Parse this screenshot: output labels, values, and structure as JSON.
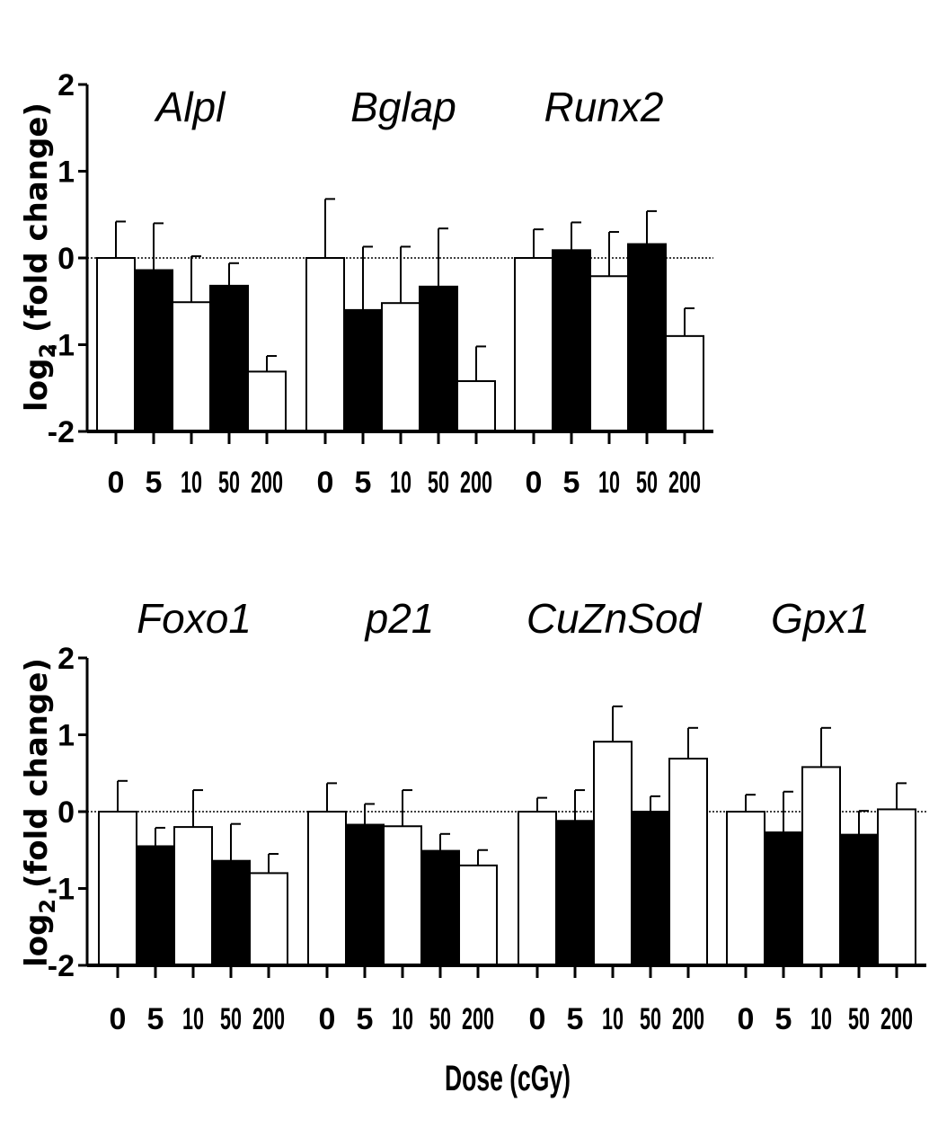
{
  "chart_data": [
    {
      "type": "bar",
      "ylabel": "log2 (fold change)",
      "ylim": [
        -2,
        2
      ],
      "yticks": [
        "2",
        "1",
        "0",
        "-1",
        "-2"
      ],
      "reference_line": 0,
      "bar_fill_pattern": [
        "#ffffff",
        "#000000",
        "#ffffff",
        "#000000",
        "#ffffff"
      ],
      "groups": [
        {
          "gene": "Alpl",
          "doses": [
            "0",
            "5",
            "10",
            "50",
            "200"
          ],
          "values": [
            0,
            -0.14,
            -0.51,
            -0.32,
            -1.31
          ],
          "errors": [
            0.42,
            0.54,
            0.53,
            0.26,
            0.18
          ]
        },
        {
          "gene": "Bglap",
          "doses": [
            "0",
            "5",
            "10",
            "50",
            "200"
          ],
          "values": [
            0,
            -0.6,
            -0.52,
            -0.33,
            -1.42
          ],
          "errors": [
            0.68,
            0.73,
            0.65,
            0.67,
            0.4
          ]
        },
        {
          "gene": "Runx2",
          "doses": [
            "0",
            "5",
            "10",
            "50",
            "200"
          ],
          "values": [
            0,
            0.09,
            -0.21,
            0.16,
            -0.9
          ],
          "errors": [
            0.33,
            0.32,
            0.51,
            0.38,
            0.32
          ]
        }
      ]
    },
    {
      "type": "bar",
      "ylabel": "log2 (fold change)",
      "xlabel": "Dose (cGy)",
      "ylim": [
        -2,
        2
      ],
      "yticks": [
        "2",
        "1",
        "0",
        "-1",
        "-2"
      ],
      "reference_line": 0,
      "bar_fill_pattern": [
        "#ffffff",
        "#000000",
        "#ffffff",
        "#000000",
        "#ffffff"
      ],
      "groups": [
        {
          "gene": "Foxo1",
          "doses": [
            "0",
            "5",
            "10",
            "50",
            "200"
          ],
          "values": [
            0,
            -0.45,
            -0.2,
            -0.64,
            -0.8
          ],
          "errors": [
            0.4,
            0.24,
            0.48,
            0.48,
            0.25
          ]
        },
        {
          "gene": "p21",
          "doses": [
            "0",
            "5",
            "10",
            "50",
            "200"
          ],
          "values": [
            0,
            -0.17,
            -0.19,
            -0.51,
            -0.7
          ],
          "errors": [
            0.37,
            0.27,
            0.47,
            0.22,
            0.2
          ]
        },
        {
          "gene": "CuZnSod",
          "doses": [
            "0",
            "5",
            "10",
            "50",
            "200"
          ],
          "values": [
            0,
            -0.12,
            0.91,
            0,
            0.69
          ],
          "errors": [
            0.18,
            0.4,
            0.46,
            0.2,
            0.4
          ]
        },
        {
          "gene": "Gpx1",
          "doses": [
            "0",
            "5",
            "10",
            "50",
            "200"
          ],
          "values": [
            0,
            -0.27,
            0.58,
            -0.3,
            0.03
          ],
          "errors": [
            0.22,
            0.53,
            0.51,
            0.31,
            0.34
          ]
        }
      ]
    }
  ]
}
